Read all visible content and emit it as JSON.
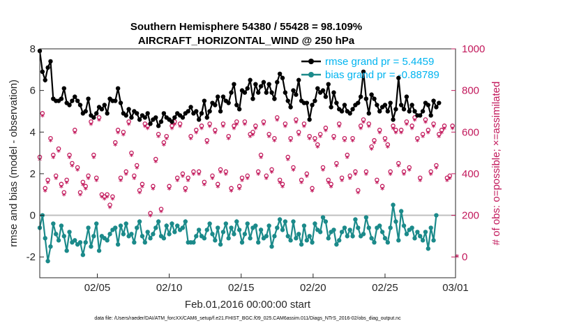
{
  "chart_data": {
    "type": "line",
    "title_line1": "Southern Hemisphere 54380 / 55428 = 98.109%",
    "title_line2": "AIRCRAFT_HORIZONTAL_WIND @ 250 hPa",
    "xlabel": "Feb.01,2016 00:00:00 start",
    "ylabel_left": "rmse and bias (model - observation)",
    "ylabel_right": "# of obs: o=possible; ×=assimilated",
    "xlim": [
      0,
      28
    ],
    "ylim_left": [
      -3,
      8
    ],
    "ylim_right": [
      -100,
      1000
    ],
    "x_ticks": [
      {
        "x": 4,
        "label": "02/05"
      },
      {
        "x": 9,
        "label": "02/10"
      },
      {
        "x": 14,
        "label": "02/15"
      },
      {
        "x": 19,
        "label": "02/20"
      },
      {
        "x": 24,
        "label": "02/25"
      },
      {
        "x": 29,
        "label": "03/01"
      }
    ],
    "y_ticks_left": [
      "-2",
      "0",
      "2",
      "4",
      "6",
      "8"
    ],
    "y_ticks_right": [
      "0",
      "200",
      "400",
      "600",
      "800",
      "1000"
    ],
    "footnote": "data file: /Users/raeder/DAI/ATM_forcXX/CAM6_setup/f.e21.FHIST_BGC.f09_025.CAM6assim.011/Diags_NTrS_2016-02/obs_diag_output.nc",
    "colors": {
      "rmse": "#000000",
      "bias": "#1b8a8a",
      "obs": "#c2185b",
      "legend_text": "#00b4f0",
      "zero_line": "#bfbfbf"
    },
    "series": [
      {
        "name": "rmse grand pr = 5.4459",
        "axis": "left",
        "values": [
          7.9,
          6.9,
          6.5,
          7.1,
          7.4,
          5.6,
          5.5,
          5.5,
          5.6,
          6.1,
          5.4,
          5.3,
          5.5,
          5.7,
          5.5,
          5.3,
          4.9,
          5.0,
          5.6,
          4.8,
          4.7,
          4.9,
          5.2,
          5.1,
          5.3,
          4.9,
          5.6,
          5.5,
          5.5,
          6.1,
          5.4,
          4.9,
          4.8,
          5.1,
          4.7,
          5.0,
          4.9,
          4.6,
          4.8,
          4.7,
          4.9,
          4.4,
          4.6,
          4.7,
          4.3,
          4.5,
          4.9,
          4.7,
          4.6,
          4.5,
          4.7,
          4.9,
          4.8,
          4.7,
          4.9,
          5.0,
          5.2,
          4.9,
          5.0,
          4.6,
          4.9,
          5.5,
          4.7,
          5.0,
          5.4,
          5.3,
          5.7,
          5.0,
          5.7,
          5.5,
          5.4,
          5.9,
          6.3,
          5.3,
          5.1,
          6.0,
          5.9,
          6.1,
          6.5,
          5.6,
          6.3,
          5.9,
          6.2,
          6.4,
          5.9,
          6.3,
          5.9,
          5.6,
          6.4,
          6.8,
          6.6,
          5.9,
          5.5,
          5.2,
          6.0,
          5.8,
          6.5,
          5.5,
          5.4,
          5.4,
          4.6,
          5.3,
          5.5,
          6.1,
          5.9,
          6.0,
          5.7,
          6.3,
          5.2,
          5.9,
          5.4,
          5.1,
          5.0,
          5.3,
          5.0,
          4.9,
          5.1,
          5.3,
          5.4,
          5.7,
          6.9,
          5.6,
          4.9,
          5.8,
          5.6,
          5.3,
          5.0,
          5.2,
          5.3,
          5.0,
          5.4,
          4.6,
          5.1,
          6.6,
          5.3,
          5.1,
          5.7,
          5.0,
          5.3,
          5.0,
          4.8,
          4.8,
          5.0,
          5.4,
          5.3,
          4.8,
          5.5,
          5.2,
          5.4
        ],
        "x_start": 0,
        "x_step": 0.1875
      },
      {
        "name": "bias grand pr = -0.88789",
        "axis": "left",
        "values": [
          -0.6,
          0.0,
          -1.1,
          -2.2,
          -1.5,
          -0.4,
          -0.9,
          -1.2,
          -0.5,
          -1.0,
          -1.7,
          -0.8,
          -1.3,
          -1.2,
          -1.4,
          -1.3,
          -1.9,
          -1.3,
          -0.6,
          -1.5,
          -1.0,
          -0.4,
          -1.7,
          -1.0,
          -1.1,
          -1.2,
          -0.9,
          -0.7,
          -0.6,
          -1.4,
          -0.5,
          -0.9,
          -0.4,
          -1.0,
          -0.9,
          -1.3,
          -0.6,
          -0.3,
          -1.0,
          -1.3,
          -0.8,
          -1.1,
          -0.9,
          -0.6,
          -0.3,
          -1.0,
          -1.1,
          -0.5,
          -0.9,
          -0.4,
          -0.8,
          -0.5,
          -0.7,
          -0.6,
          -0.3,
          -1.3,
          -1.3,
          -1.3,
          -1.0,
          -0.7,
          -1.0,
          -1.1,
          -0.7,
          -0.4,
          -0.9,
          -1.2,
          -0.6,
          -1.4,
          -0.8,
          -0.4,
          -1.1,
          -0.6,
          -0.9,
          -0.3,
          -0.7,
          -1.3,
          -0.9,
          -0.4,
          -1.1,
          -0.6,
          -0.5,
          -1.3,
          -0.7,
          -1.1,
          -1.0,
          -0.5,
          -1.5,
          -1.0,
          -0.6,
          -0.2,
          -0.7,
          -0.3,
          -1.0,
          -1.2,
          -0.3,
          -1.1,
          -0.9,
          -1.4,
          -0.5,
          -1.2,
          -1.0,
          -1.3,
          -0.4,
          -0.7,
          -0.8,
          -0.1,
          -0.3,
          -1.1,
          -0.8,
          -0.7,
          -1.4,
          -1.2,
          -0.8,
          -0.6,
          -1.0,
          -0.7,
          -1.0,
          -0.2,
          -0.6,
          -1.0,
          -0.9,
          -0.1,
          -0.6,
          -1.1,
          -1.3,
          -0.6,
          -0.5,
          -0.8,
          -1.1,
          -1.3,
          -0.6,
          0.5,
          -0.3,
          -1.2,
          0.2,
          -0.5,
          -0.9,
          -0.7,
          -0.6,
          -1.1,
          -0.8,
          -1.0,
          -1.2,
          -0.8,
          -1.6,
          -0.6,
          -1.2,
          0.0
        ],
        "x_start": 0,
        "x_step": 0.1875
      },
      {
        "name": "obs possible (o)",
        "axis": "right",
        "marker": "o",
        "values": [
          470,
          680,
          320,
          360,
          560,
          480,
          380,
          510,
          340,
          300,
          360,
          480,
          440,
          600,
          420,
          300,
          350,
          330,
          380,
          640,
          480,
          370,
          660,
          290,
          280,
          290,
          240,
          280,
          540,
          600,
          370,
          590,
          400,
          640,
          490,
          380,
          430,
          310,
          340,
          630,
          620,
          200,
          330,
          460,
          580,
          220,
          540,
          570,
          330,
          620,
          640,
          370,
          630,
          390,
          320,
          370,
          570,
          400,
          600,
          400,
          620,
          350,
          550,
          630,
          380,
          600,
          340,
          410,
          630,
          400,
          570,
          320,
          620,
          640,
          330,
          370,
          640,
          380,
          580,
          590,
          620,
          400,
          480,
          640,
          380,
          580,
          410,
          560,
          660,
          360,
          340,
          630,
          470,
          560,
          420,
          650,
          590,
          360,
          630,
          390,
          570,
          320,
          560,
          530,
          580,
          420,
          610,
          360,
          340,
          570,
          440,
          630,
          370,
          560,
          480,
          380,
          560,
          400,
          310,
          620,
          650,
          400,
          630,
          520,
          550,
          360,
          600,
          330,
          560,
          530,
          400,
          620,
          600,
          440,
          600,
          400,
          640,
          420,
          620,
          660,
          560,
          370,
          580,
          650,
          600,
          400,
          630,
          430,
          580,
          600,
          620,
          370,
          380,
          620
        ],
        "x_start": 0,
        "x_step": 0.1875
      }
    ]
  }
}
